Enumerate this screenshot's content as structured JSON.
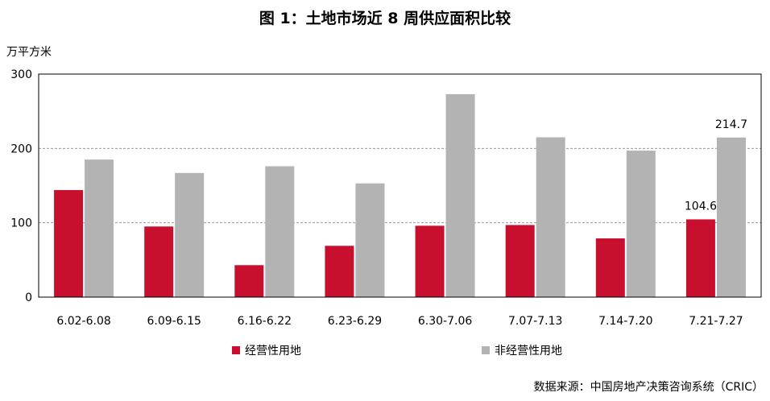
{
  "title": "图 1：土地市场近 8 周供应面积比较",
  "unit_label": "万平方米",
  "source": "数据来源：中国房地产决策咨询系统（CRIC）",
  "colors": {
    "commercial": "#C8102E",
    "noncommercial": "#B3B3B3",
    "grid": "#999999",
    "axis": "#000000"
  },
  "chart_data": {
    "type": "bar",
    "title": "图 1：土地市场近 8 周供应面积比较",
    "ylabel": "万平方米",
    "xlabel": "",
    "ylim": [
      0,
      300
    ],
    "yticks": [
      0,
      100,
      200,
      300
    ],
    "grid": true,
    "legend_position": "bottom",
    "categories": [
      "6.02-6.08",
      "6.09-6.15",
      "6.16-6.22",
      "6.23-6.29",
      "6.30-7.06",
      "7.07-7.13",
      "7.14-7.20",
      "7.21-7.27"
    ],
    "series": [
      {
        "name": "经营性用地",
        "values": [
          144,
          95,
          43,
          69,
          96,
          97,
          79,
          104.6
        ],
        "data_labels": {
          "7": "104.6"
        }
      },
      {
        "name": "非经营性用地",
        "values": [
          185,
          167,
          176,
          153,
          273,
          215,
          197,
          214.7
        ],
        "data_labels": {
          "7": "214.7"
        }
      }
    ]
  }
}
